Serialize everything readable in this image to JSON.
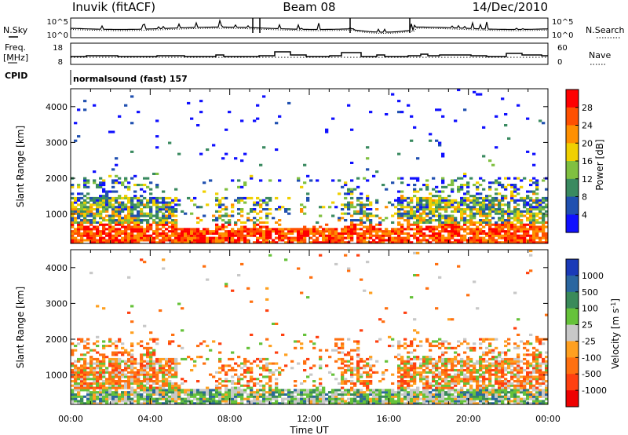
{
  "header": {
    "station": "Inuvik (fitACF)",
    "beam": "Beam 08",
    "date": "14/Dec/2010"
  },
  "left_labels": {
    "nsky": "N.Sky",
    "freq_line1": "Freq.",
    "freq_line2": "[MHz]",
    "cpid": "CPID"
  },
  "right_labels": {
    "nsearch": "N.Search",
    "nave": "Nave"
  },
  "panel_ticks": {
    "noise_left": [
      "10^5",
      "10^0"
    ],
    "noise_right": [
      "10^5",
      "10^0"
    ],
    "freq_left": [
      "18",
      "8"
    ],
    "nave_right": [
      "60",
      "0"
    ]
  },
  "cpid_text": "normalsound (fast) 157",
  "chart_data": [
    {
      "type": "heatmap",
      "panel": "power",
      "ylabel": "Slant Range [km]",
      "y_ticks": [
        "1000",
        "2000",
        "3000",
        "4000"
      ],
      "ylim": [
        180,
        4500
      ],
      "x_ticks": [
        "00:00",
        "04:00",
        "08:00",
        "12:00",
        "16:00",
        "20:00",
        "00:00"
      ],
      "colorbar_label": "Power [dB]",
      "colorbar_ticks": [
        "4",
        "8",
        "12",
        "16",
        "20",
        "24",
        "28"
      ],
      "colors": [
        "#1010ff",
        "#2050b0",
        "#3a8a60",
        "#80c040",
        "#f0d000",
        "#ff9000",
        "#ff5000",
        "#ff0000"
      ]
    },
    {
      "type": "heatmap",
      "panel": "velocity",
      "ylabel": "Slant Range [km]",
      "y_ticks": [
        "1000",
        "2000",
        "3000",
        "4000"
      ],
      "ylim": [
        180,
        4500
      ],
      "x_ticks": [
        "00:00",
        "04:00",
        "08:00",
        "12:00",
        "16:00",
        "20:00",
        "00:00"
      ],
      "xlabel": "Time UT",
      "colorbar_label": "Velocity [m s^-1]",
      "colorbar_ticks": [
        "1000",
        "500",
        "100",
        "25",
        "-25",
        "-100",
        "-500",
        "-1000"
      ],
      "colors": [
        "#1a3ab8",
        "#2a66a0",
        "#3a8a5a",
        "#66c23a",
        "#c8c8c8",
        "#ffa020",
        "#ff7010",
        "#ff4010",
        "#ee0000"
      ]
    }
  ]
}
